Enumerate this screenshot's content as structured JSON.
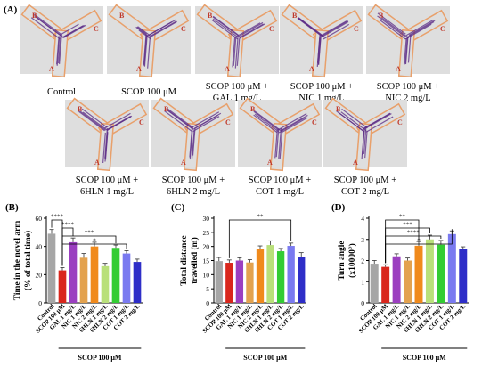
{
  "figure": {
    "panel_a_label": "(A)",
    "group_bracket_label": "SCOP 100 μM"
  },
  "mazes": [
    {
      "caption1": "Control",
      "caption2": ""
    },
    {
      "caption1": "SCOP 100 μM",
      "caption2": ""
    },
    {
      "caption1": "SCOP 100 μM +",
      "caption2": "GAL 1 mg/L"
    },
    {
      "caption1": "SCOP 100 μM +",
      "caption2": "NIC 1 mg/L"
    },
    {
      "caption1": "SCOP 100 μM +",
      "caption2": "NIC 2 mg/L"
    },
    {
      "caption1": "SCOP 100 μM +",
      "caption2": "6HLN 1 mg/L"
    },
    {
      "caption1": "SCOP 100 μM +",
      "caption2": "6HLN 2 mg/L"
    },
    {
      "caption1": "SCOP 100 μM +",
      "caption2": "COT 1 mg/L"
    },
    {
      "caption1": "SCOP 100 μM +",
      "caption2": "COT 2 mg/L"
    }
  ],
  "arm_labels": {
    "a": "A",
    "b": "B",
    "c": "C"
  },
  "colors": {
    "Control": "#a6a6a6",
    "SCOP 100 uM": "#d9261c",
    "GAL 1 mg/L": "#9b3fc0",
    "NIC 1 mg/L": "#e3a24f",
    "NIC 2 mg/L": "#f08a1c",
    "6HLN 1 mg/L": "#b9e07a",
    "6HLN 2 mg/L": "#33cc33",
    "COT 1 mg/L": "#7a7af0",
    "COT 2 mg/L": "#2e2ec8",
    "maze_box": "#e8a06b",
    "maze_track": "#5b2a86",
    "maze_letter": "#c0392b"
  },
  "chart_data": [
    {
      "type": "bar",
      "panel": "(B)",
      "categories": [
        "Control",
        "SCOP 100 μM",
        "GAL 1 mg/L",
        "NIC 1 mg/L",
        "NIC 2 mg/L",
        "6HLN 1 mg/L",
        "6HLN 2 mg/L",
        "COT 1 mg/L",
        "COT 2 mg/L"
      ],
      "values": [
        49,
        23,
        43,
        32,
        40,
        26,
        39,
        35,
        29
      ],
      "errors": [
        3,
        2,
        3,
        3,
        3,
        2,
        2,
        2,
        2
      ],
      "ylabel": "Time in the novel arm (% of total time)",
      "ylabel_line1": "Time in the novel arm",
      "ylabel_line2": "(% of total time)",
      "ylim": [
        0,
        60
      ],
      "yticks": [
        0,
        20,
        40,
        60
      ],
      "significance": [
        {
          "from": 0,
          "to": 1,
          "label": "****"
        },
        {
          "from": 1,
          "to": 2,
          "label": "****"
        },
        {
          "from": 1,
          "to": 6,
          "label": "***"
        },
        {
          "from": 1,
          "to": 7,
          "label": "*"
        }
      ]
    },
    {
      "type": "bar",
      "panel": "(C)",
      "categories": [
        "Control",
        "SCOP 100 μM",
        "GAL 1 mg/L",
        "NIC 1 mg/L",
        "NIC 2 mg/L",
        "6HLN 1 mg/L",
        "6HLN 2 mg/L",
        "COT 1 mg/L",
        "COT 2 mg/L"
      ],
      "values": [
        14.8,
        14.2,
        15.0,
        14.3,
        19.0,
        20.5,
        18.3,
        20.2,
        16.3
      ],
      "errors": [
        1.3,
        1.0,
        1.0,
        1.0,
        1.2,
        1.5,
        1.0,
        1.0,
        1.5
      ],
      "ylabel": "Total distance travelled (m)",
      "ylabel_line1": "Total distance",
      "ylabel_line2": "travelled (m)",
      "ylim": [
        0,
        30
      ],
      "yticks": [
        0,
        5,
        10,
        15,
        20,
        25,
        30
      ],
      "significance": [
        {
          "from": 1,
          "to": 7,
          "label": "**"
        }
      ]
    },
    {
      "type": "bar",
      "panel": "(D)",
      "categories": [
        "Control",
        "SCOP 100 μM",
        "GAL 1 mg/L",
        "NIC 1 mg/L",
        "NIC 2 mg/L",
        "6HLN 1 mg/L",
        "6HLN 2 mg/L",
        "COT 1 mg/L",
        "COT 2 mg/L"
      ],
      "values": [
        1.85,
        1.7,
        2.2,
        2.0,
        2.7,
        3.0,
        2.75,
        3.25,
        2.55
      ],
      "errors": [
        0.15,
        0.1,
        0.12,
        0.12,
        0.2,
        0.2,
        0.2,
        0.15,
        0.1
      ],
      "ylabel": "Turn angle (x10000°)",
      "ylabel_line1": "Turn angle",
      "ylabel_line2": "(x10000°)",
      "ylim": [
        0,
        4
      ],
      "yticks": [
        0,
        1,
        2,
        3,
        4
      ],
      "significance": [
        {
          "from": 1,
          "to": 4,
          "label": "**"
        },
        {
          "from": 1,
          "to": 5,
          "label": "***"
        },
        {
          "from": 1,
          "to": 6,
          "label": "****"
        },
        {
          "from": 1,
          "to": 7,
          "label": "*"
        }
      ]
    }
  ]
}
